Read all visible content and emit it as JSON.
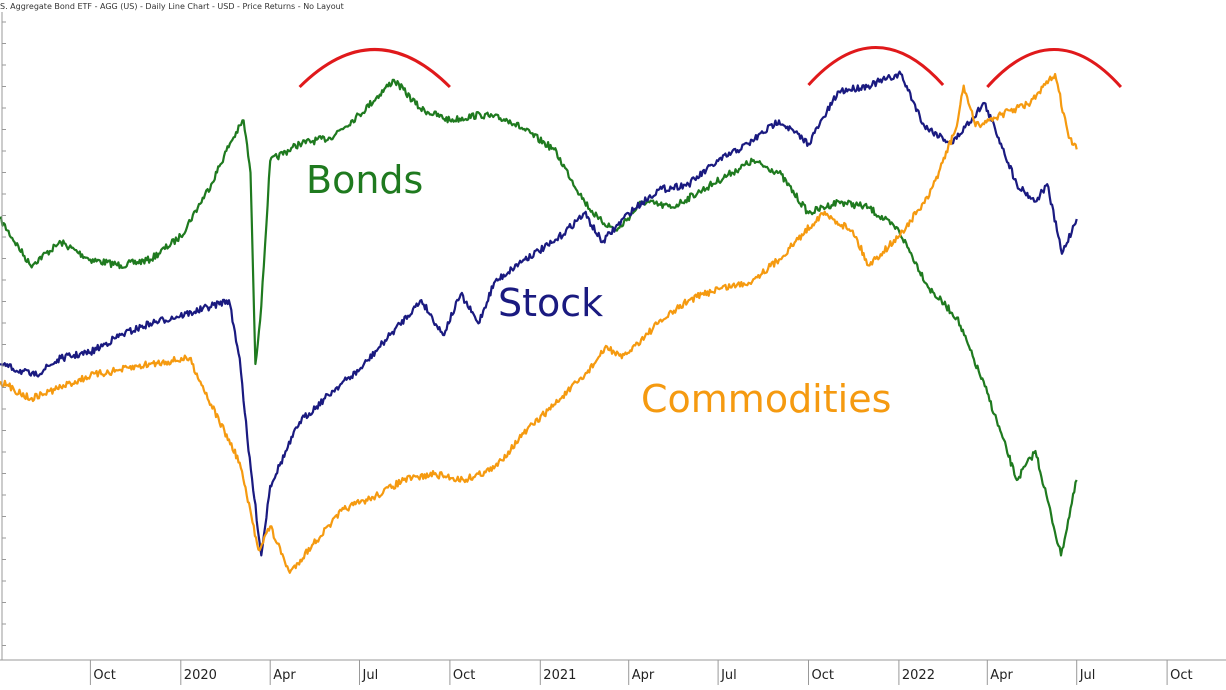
{
  "chart_data": {
    "type": "line",
    "title": "S. Aggregate Bond ETF - AGG (US) - Daily Line Chart - USD - Price Returns - No Layout",
    "x_tick_labels": [
      "Oct",
      "2020",
      "Apr",
      "Jul",
      "Oct",
      "2021",
      "Apr",
      "Jul",
      "Oct",
      "2022",
      "Apr",
      "Jul",
      "Oct"
    ],
    "x_range": [
      "2019-07-01",
      "2022-11-30"
    ],
    "y_scale": "unlabeled (relative price returns, each series independently scaled)",
    "grid": false,
    "series": [
      {
        "name": "Bonds",
        "color": "#1f7a1f",
        "points": [
          [
            "2019-07-01",
            0.7
          ],
          [
            "2019-08-01",
            0.62
          ],
          [
            "2019-09-01",
            0.66
          ],
          [
            "2019-10-01",
            0.63
          ],
          [
            "2019-11-01",
            0.62
          ],
          [
            "2019-12-01",
            0.63
          ],
          [
            "2020-01-01",
            0.67
          ],
          [
            "2020-02-01",
            0.76
          ],
          [
            "2020-02-20",
            0.83
          ],
          [
            "2020-03-05",
            0.87
          ],
          [
            "2020-03-12",
            0.78
          ],
          [
            "2020-03-17",
            0.45
          ],
          [
            "2020-03-23",
            0.55
          ],
          [
            "2020-04-01",
            0.8
          ],
          [
            "2020-05-01",
            0.83
          ],
          [
            "2020-06-01",
            0.84
          ],
          [
            "2020-07-01",
            0.88
          ],
          [
            "2020-08-05",
            0.94
          ],
          [
            "2020-09-01",
            0.89
          ],
          [
            "2020-10-01",
            0.87
          ],
          [
            "2020-11-01",
            0.88
          ],
          [
            "2020-12-01",
            0.87
          ],
          [
            "2021-01-15",
            0.82
          ],
          [
            "2021-02-15",
            0.73
          ],
          [
            "2021-03-01",
            0.7
          ],
          [
            "2021-03-20",
            0.68
          ],
          [
            "2021-04-15",
            0.73
          ],
          [
            "2021-05-15",
            0.72
          ],
          [
            "2021-06-15",
            0.75
          ],
          [
            "2021-07-15",
            0.78
          ],
          [
            "2021-08-05",
            0.8
          ],
          [
            "2021-09-01",
            0.78
          ],
          [
            "2021-10-01",
            0.71
          ],
          [
            "2021-11-01",
            0.73
          ],
          [
            "2021-12-01",
            0.72
          ],
          [
            "2022-01-01",
            0.68
          ],
          [
            "2022-02-01",
            0.58
          ],
          [
            "2022-03-01",
            0.53
          ],
          [
            "2022-04-01",
            0.4
          ],
          [
            "2022-05-01",
            0.25
          ],
          [
            "2022-05-20",
            0.3
          ],
          [
            "2022-06-15",
            0.12
          ],
          [
            "2022-07-01",
            0.25
          ]
        ]
      },
      {
        "name": "Stock",
        "color": "#1a1a80",
        "points": [
          [
            "2019-07-01",
            0.45
          ],
          [
            "2019-08-05",
            0.43
          ],
          [
            "2019-09-01",
            0.46
          ],
          [
            "2019-10-01",
            0.47
          ],
          [
            "2019-11-01",
            0.5
          ],
          [
            "2019-12-01",
            0.52
          ],
          [
            "2020-01-15",
            0.54
          ],
          [
            "2020-02-19",
            0.56
          ],
          [
            "2020-03-01",
            0.46
          ],
          [
            "2020-03-10",
            0.3
          ],
          [
            "2020-03-23",
            0.12
          ],
          [
            "2020-04-01",
            0.24
          ],
          [
            "2020-05-01",
            0.35
          ],
          [
            "2020-06-08",
            0.41
          ],
          [
            "2020-07-01",
            0.44
          ],
          [
            "2020-08-01",
            0.5
          ],
          [
            "2020-09-02",
            0.56
          ],
          [
            "2020-09-24",
            0.5
          ],
          [
            "2020-10-12",
            0.57
          ],
          [
            "2020-10-30",
            0.52
          ],
          [
            "2020-11-15",
            0.59
          ],
          [
            "2020-12-15",
            0.63
          ],
          [
            "2021-01-15",
            0.66
          ],
          [
            "2021-02-15",
            0.71
          ],
          [
            "2021-03-05",
            0.66
          ],
          [
            "2021-04-01",
            0.71
          ],
          [
            "2021-05-01",
            0.75
          ],
          [
            "2021-06-01",
            0.76
          ],
          [
            "2021-07-01",
            0.8
          ],
          [
            "2021-08-01",
            0.83
          ],
          [
            "2021-09-01",
            0.87
          ],
          [
            "2021-10-01",
            0.83
          ],
          [
            "2021-11-01",
            0.92
          ],
          [
            "2021-12-01",
            0.93
          ],
          [
            "2022-01-03",
            0.95
          ],
          [
            "2022-01-27",
            0.86
          ],
          [
            "2022-02-24",
            0.83
          ],
          [
            "2022-03-29",
            0.9
          ],
          [
            "2022-04-15",
            0.83
          ],
          [
            "2022-05-01",
            0.76
          ],
          [
            "2022-05-20",
            0.73
          ],
          [
            "2022-06-01",
            0.76
          ],
          [
            "2022-06-16",
            0.64
          ],
          [
            "2022-07-01",
            0.7
          ]
        ]
      },
      {
        "name": "Commodities",
        "color": "#f59a10",
        "points": [
          [
            "2019-07-01",
            0.42
          ],
          [
            "2019-08-01",
            0.39
          ],
          [
            "2019-09-01",
            0.41
          ],
          [
            "2019-10-01",
            0.43
          ],
          [
            "2019-11-01",
            0.44
          ],
          [
            "2019-12-01",
            0.45
          ],
          [
            "2020-01-10",
            0.46
          ],
          [
            "2020-02-01",
            0.38
          ],
          [
            "2020-03-01",
            0.28
          ],
          [
            "2020-03-20",
            0.13
          ],
          [
            "2020-04-01",
            0.17
          ],
          [
            "2020-04-21",
            0.09
          ],
          [
            "2020-05-15",
            0.14
          ],
          [
            "2020-06-15",
            0.2
          ],
          [
            "2020-07-15",
            0.22
          ],
          [
            "2020-08-15",
            0.25
          ],
          [
            "2020-09-15",
            0.26
          ],
          [
            "2020-10-15",
            0.25
          ],
          [
            "2020-11-15",
            0.27
          ],
          [
            "2020-12-15",
            0.33
          ],
          [
            "2021-01-15",
            0.38
          ],
          [
            "2021-02-15",
            0.43
          ],
          [
            "2021-03-10",
            0.48
          ],
          [
            "2021-03-25",
            0.46
          ],
          [
            "2021-05-01",
            0.52
          ],
          [
            "2021-06-01",
            0.56
          ],
          [
            "2021-07-01",
            0.58
          ],
          [
            "2021-08-01",
            0.59
          ],
          [
            "2021-09-01",
            0.63
          ],
          [
            "2021-10-15",
            0.71
          ],
          [
            "2021-11-15",
            0.68
          ],
          [
            "2021-12-01",
            0.62
          ],
          [
            "2022-01-01",
            0.67
          ],
          [
            "2022-02-01",
            0.74
          ],
          [
            "2022-03-01",
            0.86
          ],
          [
            "2022-03-08",
            0.93
          ],
          [
            "2022-03-20",
            0.86
          ],
          [
            "2022-04-15",
            0.88
          ],
          [
            "2022-05-15",
            0.9
          ],
          [
            "2022-06-09",
            0.95
          ],
          [
            "2022-06-23",
            0.84
          ],
          [
            "2022-07-01",
            0.82
          ]
        ]
      }
    ],
    "annotations": [
      {
        "type": "peak-arc",
        "color": "#e0191b",
        "from": "2020-05-01",
        "to": "2020-10-01"
      },
      {
        "type": "peak-arc",
        "color": "#e0191b",
        "from": "2021-10-01",
        "to": "2022-02-15"
      },
      {
        "type": "peak-arc",
        "color": "#e0191b",
        "from": "2022-04-01",
        "to": "2022-08-15"
      }
    ]
  }
}
